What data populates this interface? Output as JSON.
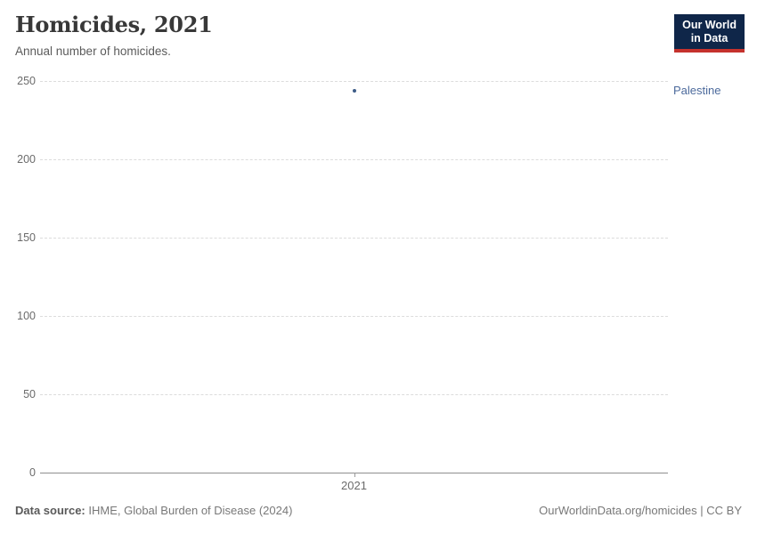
{
  "header": {
    "title": "Homicides, 2021",
    "subtitle": "Annual number of homicides."
  },
  "logo": {
    "line1": "Our World",
    "line2": "in Data",
    "background_color": "#0F2649",
    "accent_color": "#C5322D"
  },
  "footer": {
    "source_label": "Data source:",
    "source_text": "IHME, Global Burden of Disease (2024)",
    "attribution": "OurWorldinData.org/homicides | CC BY"
  },
  "chart_data": {
    "type": "scatter",
    "title": "Homicides, 2021",
    "subtitle": "Annual number of homicides.",
    "xticks": [
      2021
    ],
    "yticks": [
      0,
      50,
      100,
      150,
      200,
      250
    ],
    "ylim": [
      0,
      250
    ],
    "xlabel": "",
    "ylabel": "",
    "grid": "horizontal-dashed",
    "legend_position": "right-of-plot",
    "series": [
      {
        "name": "Palestine",
        "x": [
          2021
        ],
        "y": [
          244
        ],
        "point_color": "#3D5C87",
        "label_color": "#4C6A9C"
      }
    ],
    "colors": {
      "gridline": "#DCDCDC",
      "axis_line": "#8F8F8F",
      "tick_text": "#6B6B6B"
    }
  }
}
